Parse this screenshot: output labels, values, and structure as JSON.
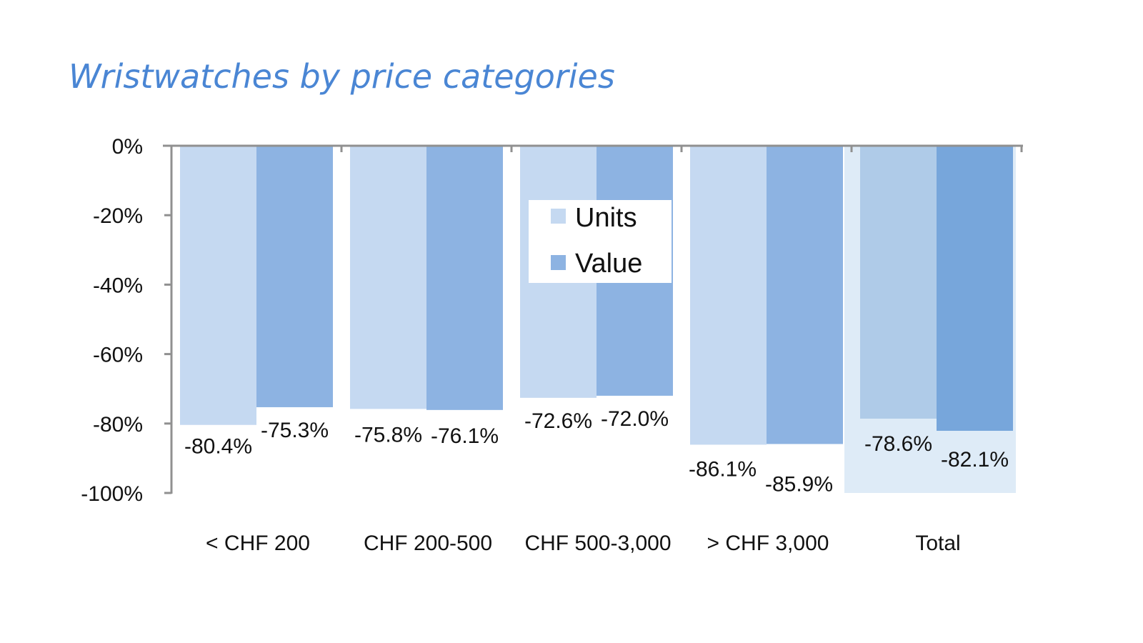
{
  "chart_data": {
    "type": "bar",
    "title": "Wristwatches by price categories",
    "xlabel": "",
    "ylabel": "",
    "categories": [
      "< CHF 200",
      "CHF 200-500",
      "CHF 500-3,000",
      "> CHF 3,000",
      "Total"
    ],
    "series": [
      {
        "name": "Units",
        "values": [
          -80.4,
          -75.8,
          -72.6,
          -86.1,
          -78.6
        ],
        "labels": [
          "-80.4%",
          "-75.8%",
          "-72.6%",
          "-86.1%",
          "-78.6%"
        ],
        "color": "#c5d9f1",
        "highlight_color": "#afcbe8"
      },
      {
        "name": "Value",
        "values": [
          -75.3,
          -76.1,
          -72.0,
          -85.9,
          -82.1
        ],
        "labels": [
          "-75.3%",
          "-76.1%",
          "-72.0%",
          "-85.9%",
          "-82.1%"
        ],
        "color": "#8db3e2",
        "highlight_color": "#77a6db"
      }
    ],
    "ylim": [
      -100,
      0
    ],
    "yticks": [
      0,
      -20,
      -40,
      -60,
      -80,
      -100
    ],
    "ytick_labels": [
      "0%",
      "-20%",
      "-40%",
      "-60%",
      "-80%",
      "-100%"
    ],
    "grid": false,
    "legend": {
      "placement": "center",
      "entries": [
        "Units",
        "Value"
      ]
    },
    "highlighted_category": "Total",
    "highlight_background": "#deebf7",
    "colors": {
      "title": "#4a86d4",
      "axis": "#909090",
      "text": "#111111"
    }
  }
}
